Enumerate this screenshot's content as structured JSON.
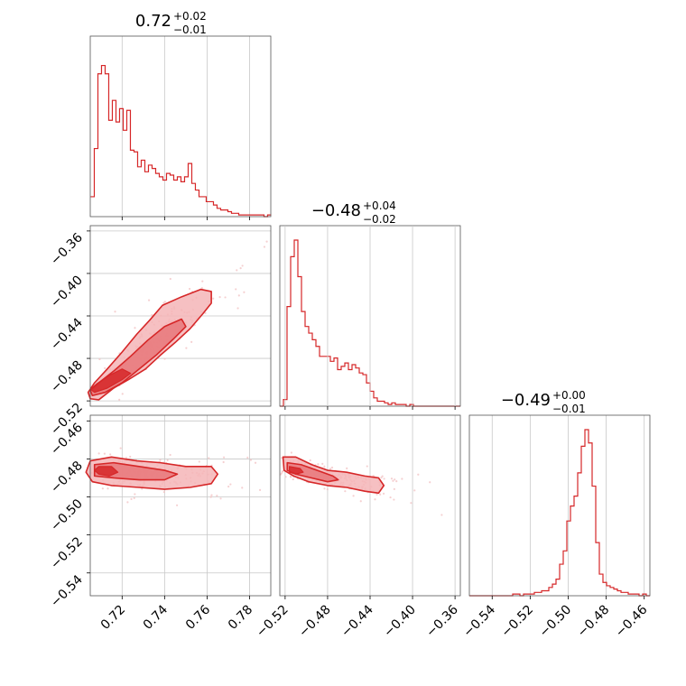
{
  "colors": {
    "main": "#d62728",
    "fill_outer": "#f4b5b7",
    "fill_inner": "#e8777a",
    "scatter": "#f2c4c5",
    "grid": "#c8c8c8"
  },
  "chart_data": [
    {
      "type": "histogram",
      "parameter_index": 0,
      "title": {
        "value": "0.72",
        "sup": "+0.02",
        "sub": "−0.01"
      },
      "xlim": [
        0.705,
        0.79
      ],
      "xticks": [
        "0.72",
        "0.74",
        "0.76",
        "0.78"
      ],
      "xtick_values": [
        0.72,
        0.74,
        0.76,
        0.78
      ],
      "bins_start": 0.7052,
      "bin_width": 0.0017,
      "counts": [
        0.12,
        0.41,
        0.86,
        0.91,
        0.86,
        0.58,
        0.7,
        0.57,
        0.65,
        0.52,
        0.64,
        0.4,
        0.39,
        0.3,
        0.34,
        0.27,
        0.31,
        0.29,
        0.26,
        0.24,
        0.22,
        0.26,
        0.25,
        0.22,
        0.24,
        0.21,
        0.24,
        0.32,
        0.2,
        0.16,
        0.12,
        0.12,
        0.09,
        0.09,
        0.07,
        0.05,
        0.04,
        0.04,
        0.03,
        0.02,
        0.02,
        0.01,
        0.01,
        0.01,
        0.01,
        0.01,
        0.01,
        0.01,
        0.0,
        0.01
      ]
    },
    {
      "type": "histogram",
      "parameter_index": 1,
      "title": {
        "value": "−0.48",
        "sup": "+0.04",
        "sub": "−0.02"
      },
      "xlim": [
        -0.525,
        -0.355
      ],
      "bins_start": -0.525,
      "bin_width": 0.0034,
      "counts": [
        0.0,
        0.04,
        0.6,
        0.9,
        1.0,
        0.78,
        0.57,
        0.48,
        0.44,
        0.4,
        0.36,
        0.3,
        0.3,
        0.3,
        0.27,
        0.29,
        0.22,
        0.24,
        0.26,
        0.22,
        0.25,
        0.23,
        0.2,
        0.19,
        0.14,
        0.09,
        0.05,
        0.03,
        0.03,
        0.02,
        0.01,
        0.02,
        0.01,
        0.01,
        0.01,
        0.0,
        0.01,
        0.0,
        0.0,
        0.0,
        0.0,
        0.0,
        0.0,
        0.0,
        0.0,
        0.0,
        0.0,
        0.0,
        0.0,
        0.0
      ]
    },
    {
      "type": "histogram",
      "parameter_index": 2,
      "title": {
        "value": "−0.49",
        "sup": "+0.00",
        "sub": "−0.01"
      },
      "xlim": [
        -0.552,
        -0.457
      ],
      "xticks": [
        "−0.54",
        "−0.52",
        "−0.50",
        "−0.48",
        "−0.46"
      ],
      "xtick_values": [
        -0.54,
        -0.52,
        -0.5,
        -0.48,
        -0.46
      ],
      "bins_start": -0.552,
      "bin_width": 0.0019,
      "counts": [
        0.0,
        0.0,
        0.0,
        0.0,
        0.0,
        0.0,
        0.0,
        0.0,
        0.0,
        0.0,
        0.0,
        0.0,
        0.01,
        0.01,
        0.0,
        0.01,
        0.01,
        0.01,
        0.02,
        0.02,
        0.03,
        0.03,
        0.05,
        0.07,
        0.1,
        0.19,
        0.27,
        0.45,
        0.54,
        0.6,
        0.74,
        0.9,
        1.0,
        0.92,
        0.66,
        0.32,
        0.13,
        0.08,
        0.06,
        0.05,
        0.04,
        0.03,
        0.02,
        0.02,
        0.01,
        0.01,
        0.01,
        0.0,
        0.01,
        0.0
      ]
    },
    {
      "type": "contour",
      "x_param": 0,
      "y_param": 1,
      "xlim": [
        0.705,
        0.79
      ],
      "ylim": [
        -0.525,
        -0.355
      ],
      "yticks": [
        "−0.36",
        "−0.40",
        "−0.44",
        "−0.48",
        "−0.52"
      ],
      "ytick_values": [
        -0.36,
        -0.4,
        -0.44,
        -0.48,
        -0.52
      ],
      "grid": true,
      "levels": [
        {
          "kind": "outer",
          "points": [
            [
              0.705,
              -0.518
            ],
            [
              0.709,
              -0.519
            ],
            [
              0.716,
              -0.508
            ],
            [
              0.723,
              -0.5
            ],
            [
              0.731,
              -0.49
            ],
            [
              0.738,
              -0.477
            ],
            [
              0.745,
              -0.465
            ],
            [
              0.752,
              -0.452
            ],
            [
              0.758,
              -0.438
            ],
            [
              0.762,
              -0.428
            ],
            [
              0.762,
              -0.417
            ],
            [
              0.757,
              -0.415
            ],
            [
              0.748,
              -0.422
            ],
            [
              0.739,
              -0.43
            ],
            [
              0.733,
              -0.444
            ],
            [
              0.727,
              -0.457
            ],
            [
              0.72,
              -0.474
            ],
            [
              0.713,
              -0.49
            ],
            [
              0.707,
              -0.503
            ],
            [
              0.704,
              -0.512
            ]
          ]
        },
        {
          "kind": "middle",
          "points": [
            [
              0.706,
              -0.515
            ],
            [
              0.712,
              -0.512
            ],
            [
              0.72,
              -0.503
            ],
            [
              0.728,
              -0.49
            ],
            [
              0.736,
              -0.477
            ],
            [
              0.744,
              -0.462
            ],
            [
              0.75,
              -0.45
            ],
            [
              0.748,
              -0.443
            ],
            [
              0.74,
              -0.45
            ],
            [
              0.732,
              -0.463
            ],
            [
              0.724,
              -0.478
            ],
            [
              0.716,
              -0.492
            ],
            [
              0.709,
              -0.503
            ],
            [
              0.705,
              -0.51
            ]
          ]
        },
        {
          "kind": "inner",
          "points": [
            [
              0.707,
              -0.512
            ],
            [
              0.713,
              -0.508
            ],
            [
              0.72,
              -0.5
            ],
            [
              0.724,
              -0.494
            ],
            [
              0.72,
              -0.49
            ],
            [
              0.714,
              -0.496
            ],
            [
              0.708,
              -0.504
            ],
            [
              0.705,
              -0.509
            ]
          ]
        }
      ],
      "scatter_count": 260
    },
    {
      "type": "contour",
      "x_param": 0,
      "y_param": 2,
      "xlim": [
        0.705,
        0.79
      ],
      "ylim": [
        -0.552,
        -0.457
      ],
      "yticks": [
        "−0.46",
        "−0.48",
        "−0.50",
        "−0.52",
        "−0.54"
      ],
      "ytick_values": [
        -0.46,
        -0.48,
        -0.5,
        -0.52,
        -0.54
      ],
      "xticks": [
        "0.72",
        "0.74",
        "0.76",
        "0.78"
      ],
      "xtick_values": [
        0.72,
        0.74,
        0.76,
        0.78
      ],
      "grid": true,
      "levels": [
        {
          "kind": "outer",
          "points": [
            [
              0.705,
              -0.481
            ],
            [
              0.715,
              -0.479
            ],
            [
              0.727,
              -0.481
            ],
            [
              0.738,
              -0.482
            ],
            [
              0.75,
              -0.484
            ],
            [
              0.762,
              -0.484
            ],
            [
              0.765,
              -0.488
            ],
            [
              0.762,
              -0.493
            ],
            [
              0.752,
              -0.495
            ],
            [
              0.74,
              -0.496
            ],
            [
              0.728,
              -0.495
            ],
            [
              0.715,
              -0.494
            ],
            [
              0.706,
              -0.492
            ],
            [
              0.703,
              -0.487
            ]
          ]
        },
        {
          "kind": "middle",
          "points": [
            [
              0.707,
              -0.483
            ],
            [
              0.716,
              -0.482
            ],
            [
              0.728,
              -0.484
            ],
            [
              0.74,
              -0.486
            ],
            [
              0.746,
              -0.488
            ],
            [
              0.74,
              -0.491
            ],
            [
              0.728,
              -0.491
            ],
            [
              0.716,
              -0.49
            ],
            [
              0.707,
              -0.489
            ]
          ]
        },
        {
          "kind": "inner",
          "points": [
            [
              0.709,
              -0.484
            ],
            [
              0.715,
              -0.484
            ],
            [
              0.718,
              -0.487
            ],
            [
              0.714,
              -0.489
            ],
            [
              0.709,
              -0.488
            ],
            [
              0.707,
              -0.486
            ]
          ]
        }
      ],
      "scatter_count": 260
    },
    {
      "type": "contour",
      "x_param": 1,
      "y_param": 2,
      "xlim": [
        -0.525,
        -0.355
      ],
      "ylim": [
        -0.552,
        -0.457
      ],
      "xticks": [
        "−0.52",
        "−0.48",
        "−0.44",
        "−0.40",
        "−0.36"
      ],
      "xtick_values": [
        -0.52,
        -0.48,
        -0.44,
        -0.4,
        -0.36
      ],
      "grid": true,
      "levels": [
        {
          "kind": "outer",
          "points": [
            [
              -0.522,
              -0.479
            ],
            [
              -0.51,
              -0.479
            ],
            [
              -0.495,
              -0.483
            ],
            [
              -0.48,
              -0.486
            ],
            [
              -0.462,
              -0.487
            ],
            [
              -0.445,
              -0.489
            ],
            [
              -0.432,
              -0.49
            ],
            [
              -0.427,
              -0.494
            ],
            [
              -0.432,
              -0.498
            ],
            [
              -0.445,
              -0.497
            ],
            [
              -0.462,
              -0.495
            ],
            [
              -0.48,
              -0.494
            ],
            [
              -0.498,
              -0.492
            ],
            [
              -0.512,
              -0.489
            ],
            [
              -0.521,
              -0.486
            ]
          ]
        },
        {
          "kind": "middle",
          "points": [
            [
              -0.518,
              -0.482
            ],
            [
              -0.505,
              -0.483
            ],
            [
              -0.49,
              -0.486
            ],
            [
              -0.475,
              -0.489
            ],
            [
              -0.47,
              -0.491
            ],
            [
              -0.48,
              -0.492
            ],
            [
              -0.495,
              -0.49
            ],
            [
              -0.51,
              -0.488
            ],
            [
              -0.518,
              -0.486
            ]
          ]
        },
        {
          "kind": "inner",
          "points": [
            [
              -0.516,
              -0.484
            ],
            [
              -0.506,
              -0.485
            ],
            [
              -0.503,
              -0.487
            ],
            [
              -0.51,
              -0.488
            ],
            [
              -0.516,
              -0.487
            ]
          ]
        }
      ],
      "scatter_count": 260
    }
  ]
}
